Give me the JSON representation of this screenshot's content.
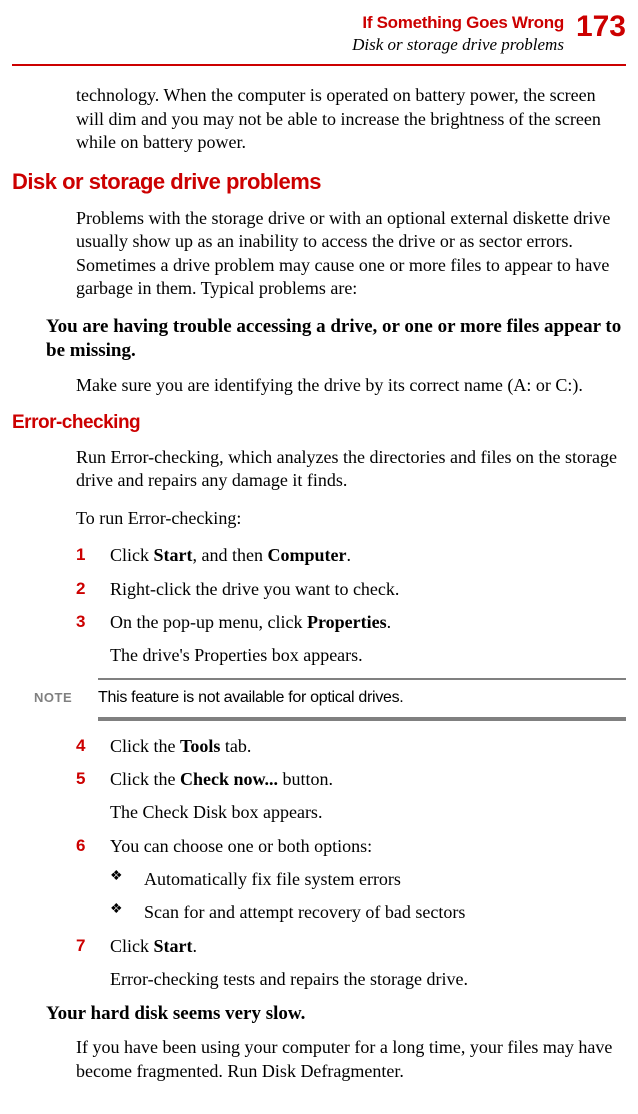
{
  "header": {
    "chapter": "If Something Goes Wrong",
    "subtitle": "Disk or storage drive problems",
    "page_number": "173"
  },
  "intro_continuation": "technology. When the computer is operated on battery power, the screen will dim and you may not be able to increase the brightness of the screen while on battery power.",
  "section1": {
    "heading": "Disk or storage drive problems",
    "intro": "Problems with the storage drive or with an optional external diskette drive usually show up as an inability to access the drive or as sector errors. Sometimes a drive problem may cause one or more files to appear to have garbage in them. Typical problems are:",
    "problem1_title": "You are having trouble accessing a drive, or one or more files appear to be missing.",
    "problem1_body": "Make sure you are identifying the drive by its correct name (A: or C:)."
  },
  "error_checking": {
    "heading": "Error-checking",
    "intro": "Run Error-checking, which analyzes the directories and files on the storage drive and repairs any damage it finds.",
    "to_run": "To run Error-checking:",
    "steps": {
      "s1": {
        "num": "1",
        "prefix": "Click ",
        "b1": "Start",
        "mid": ", and then ",
        "b2": "Computer",
        "suffix": "."
      },
      "s2": {
        "num": "2",
        "text": "Right-click the drive you want to check."
      },
      "s3": {
        "num": "3",
        "prefix": "On the pop-up menu, click ",
        "b1": "Properties",
        "suffix": "."
      },
      "s3_note": "The drive's Properties box appears.",
      "s4": {
        "num": "4",
        "prefix": "Click the ",
        "b1": "Tools",
        "suffix": " tab."
      },
      "s5": {
        "num": "5",
        "prefix": "Click the ",
        "b1": "Check now...",
        "suffix": " button."
      },
      "s5_note": "The Check Disk box appears.",
      "s6": {
        "num": "6",
        "text": "You can choose one or both options:"
      },
      "s6_b1": "Automatically fix file system errors",
      "s6_b2": "Scan for and attempt recovery of bad sectors",
      "s7": {
        "num": "7",
        "prefix": "Click ",
        "b1": "Start",
        "suffix": "."
      },
      "s7_note": "Error-checking tests and repairs the storage drive."
    }
  },
  "note": {
    "label": "NOTE",
    "text": "This feature is not available for optical drives."
  },
  "problem2": {
    "title": "Your hard disk seems very slow.",
    "body": "If you have been using your computer for a long time, your files may have become fragmented. Run Disk Defragmenter."
  },
  "bullet_glyph": "❖",
  "colors": {
    "accent": "#cc0000",
    "note_gray": "#808080"
  }
}
